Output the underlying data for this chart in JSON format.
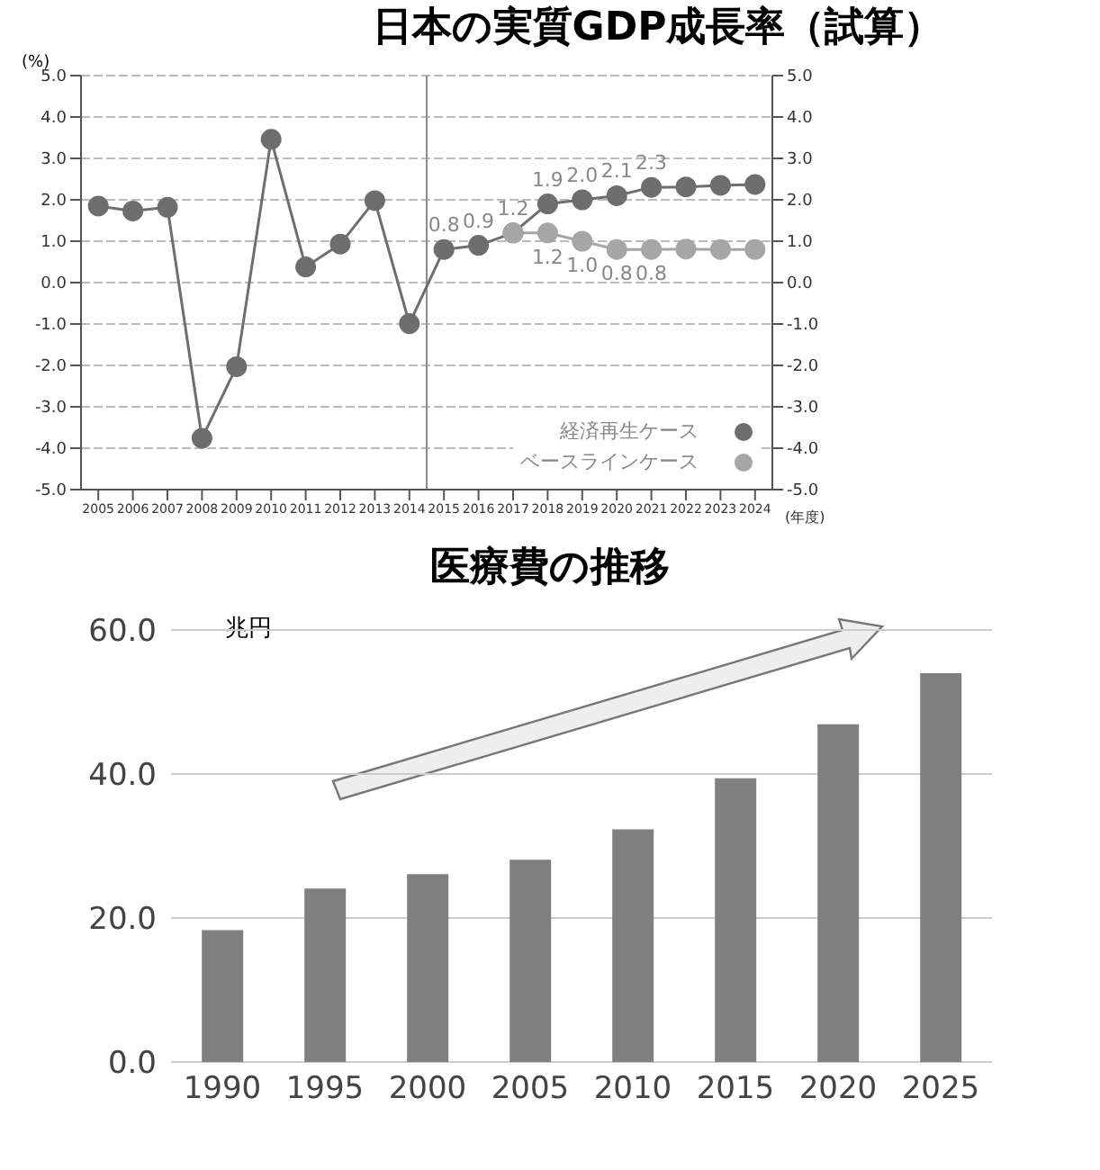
{
  "chart_data": [
    {
      "type": "line",
      "title": "日本の実質GDP成長率（試算）",
      "ylabel": "(%)",
      "xlabel": "(年度)",
      "x": [
        2005,
        2006,
        2007,
        2008,
        2009,
        2010,
        2011,
        2012,
        2013,
        2014,
        2015,
        2016,
        2017,
        2018,
        2019,
        2020,
        2021,
        2022,
        2023,
        2024
      ],
      "series": [
        {
          "name": "経済再生ケース",
          "color": "#6e6e6e",
          "values": [
            1.85,
            1.73,
            1.82,
            -3.76,
            -2.03,
            3.46,
            0.38,
            0.93,
            1.98,
            -0.99,
            0.8,
            0.9,
            1.2,
            1.9,
            2.0,
            2.1,
            2.3,
            2.31,
            2.35,
            2.37
          ],
          "value_labels": [
            null,
            null,
            null,
            null,
            null,
            null,
            null,
            null,
            null,
            null,
            "0.8",
            "0.9",
            "1.2",
            "1.9",
            "2.0",
            "2.1",
            "2.3",
            null,
            null,
            null
          ]
        },
        {
          "name": "ベースラインケース",
          "color": "#a6a6a6",
          "values": [
            null,
            null,
            null,
            null,
            null,
            null,
            null,
            null,
            null,
            null,
            null,
            null,
            1.2,
            1.2,
            1.0,
            0.8,
            0.8,
            0.81,
            0.8,
            0.8
          ],
          "value_labels": [
            null,
            null,
            null,
            null,
            null,
            null,
            null,
            null,
            null,
            null,
            null,
            null,
            null,
            "1.2",
            "1.0",
            "0.8",
            "0.8",
            null,
            null,
            null
          ]
        }
      ],
      "xlim": [
        2004.5,
        2024.5
      ],
      "xticks": [
        2005,
        2006,
        2007,
        2008,
        2009,
        2010,
        2011,
        2012,
        2013,
        2014,
        2015,
        2016,
        2017,
        2018,
        2019,
        2020,
        2021,
        2022,
        2023,
        2024
      ],
      "ylim": [
        -5,
        5
      ],
      "yticks": [
        {
          "value": -5,
          "label": "-5.0"
        },
        {
          "value": -4,
          "label": "-4.0"
        },
        {
          "value": -3,
          "label": "-3.0"
        },
        {
          "value": -2,
          "label": "-2.0"
        },
        {
          "value": -1,
          "label": "-1.0"
        },
        {
          "value": 0,
          "label": "0.0"
        },
        {
          "value": 1,
          "label": "1.0"
        },
        {
          "value": 2,
          "label": "2.0"
        },
        {
          "value": 3,
          "label": "3.0"
        },
        {
          "value": 4,
          "label": "4.0"
        },
        {
          "value": 5,
          "label": "5.0"
        }
      ],
      "y2lim": [
        -5,
        5
      ],
      "y2ticks": [
        {
          "value": -5,
          "label": "-5.0"
        },
        {
          "value": -4,
          "label": "-4.0"
        },
        {
          "value": -3,
          "label": "-3.0"
        },
        {
          "value": -2,
          "label": "-2.0"
        },
        {
          "value": -1,
          "label": "-1.0"
        },
        {
          "value": 0,
          "label": "0.0"
        },
        {
          "value": 1,
          "label": "1.0"
        },
        {
          "value": 2,
          "label": "2.0"
        },
        {
          "value": 3,
          "label": "3.0"
        },
        {
          "value": 4,
          "label": "4.0"
        },
        {
          "value": 5,
          "label": "5.0"
        }
      ],
      "ref_lines": [
        {
          "axis": "x",
          "value": 2014.5,
          "color": "#8c8c8c"
        }
      ],
      "grid": "y",
      "legend": "bottom right",
      "marker": "circle",
      "line_style": "solid"
    },
    {
      "type": "bar",
      "title": "医療費の推移",
      "ylabel": "兆円",
      "categories": [
        "1990",
        "1995",
        "2000",
        "2005",
        "2010",
        "2015",
        "2020",
        "2025"
      ],
      "values": [
        18.3,
        24.1,
        26.1,
        28.1,
        32.3,
        39.4,
        46.9,
        54.0
      ],
      "color": "#808080",
      "ylim": [
        0,
        60
      ],
      "yticks": [
        {
          "value": 0,
          "label": "0.0"
        },
        {
          "value": 20,
          "label": "20.0"
        },
        {
          "value": 40,
          "label": "40.0"
        },
        {
          "value": 60,
          "label": "60.0"
        }
      ],
      "grid": "y",
      "legend": false
    }
  ]
}
